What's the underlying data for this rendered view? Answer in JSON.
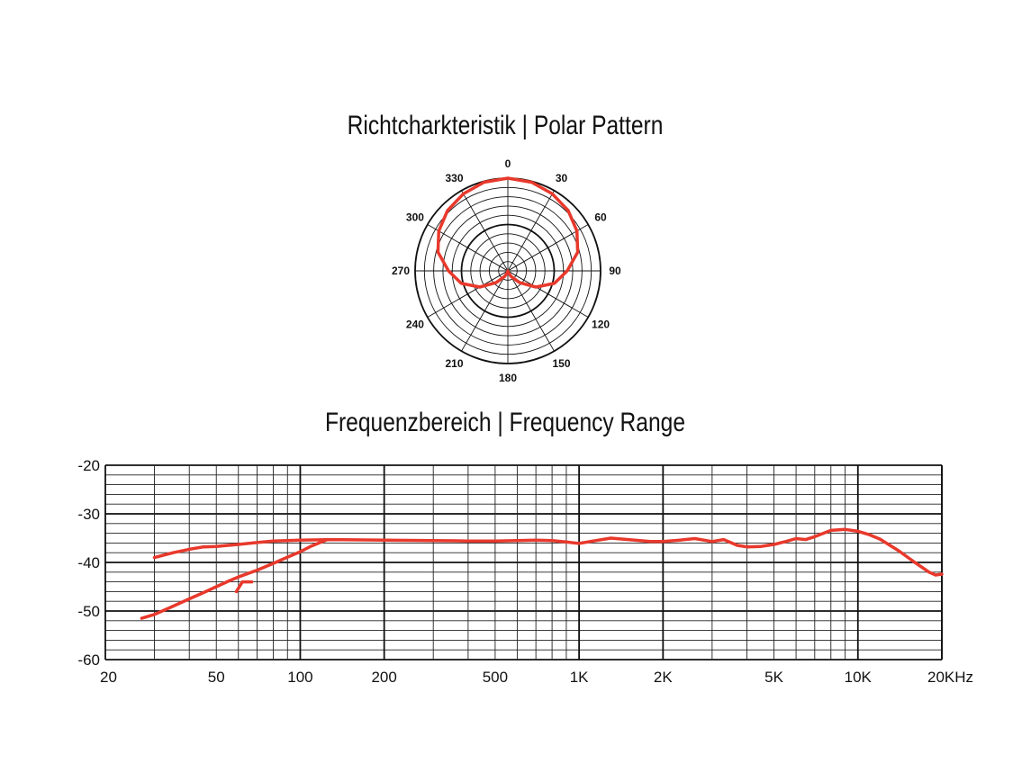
{
  "chart_data": [
    {
      "type": "polar",
      "title": "Richtcharkteristik | Polar Pattern",
      "angle_labels": [
        "0",
        "30",
        "60",
        "90",
        "120",
        "150",
        "180",
        "210",
        "240",
        "270",
        "300",
        "330"
      ],
      "rings": 10,
      "series": [
        {
          "color": "#e8392c",
          "points": [
            [
              0,
              1.0
            ],
            [
              15,
              0.99
            ],
            [
              30,
              0.96
            ],
            [
              45,
              0.92
            ],
            [
              60,
              0.86
            ],
            [
              75,
              0.78
            ],
            [
              90,
              0.64
            ],
            [
              105,
              0.52
            ],
            [
              120,
              0.35
            ],
            [
              135,
              0.18
            ],
            [
              150,
              0.07
            ],
            [
              165,
              0.02
            ],
            [
              180,
              0.0
            ],
            [
              195,
              0.02
            ],
            [
              210,
              0.07
            ],
            [
              225,
              0.18
            ],
            [
              240,
              0.35
            ],
            [
              255,
              0.52
            ],
            [
              270,
              0.64
            ],
            [
              285,
              0.78
            ],
            [
              300,
              0.86
            ],
            [
              315,
              0.92
            ],
            [
              330,
              0.96
            ],
            [
              345,
              0.99
            ],
            [
              360,
              1.0
            ]
          ]
        }
      ]
    },
    {
      "type": "line",
      "title": "Frequenzbereich | Frequency Range",
      "x_scale": "log",
      "xlim": [
        20,
        20000
      ],
      "ylim": [
        -60,
        -20
      ],
      "x_ticks": [
        {
          "value": 20,
          "label": "20"
        },
        {
          "value": 50,
          "label": "50"
        },
        {
          "value": 100,
          "label": "100"
        },
        {
          "value": 200,
          "label": "200"
        },
        {
          "value": 500,
          "label": "500"
        },
        {
          "value": 1000,
          "label": "1K"
        },
        {
          "value": 2000,
          "label": "2K"
        },
        {
          "value": 5000,
          "label": "5K"
        },
        {
          "value": 10000,
          "label": "10K"
        },
        {
          "value": 20000,
          "label": "20KHz"
        }
      ],
      "y_ticks": [
        {
          "value": -20,
          "label": "-20"
        },
        {
          "value": -30,
          "label": "-30"
        },
        {
          "value": -40,
          "label": "-40"
        },
        {
          "value": -50,
          "label": "-50"
        },
        {
          "value": -60,
          "label": "-60"
        }
      ],
      "series": [
        {
          "color": "#e8392c",
          "points": [
            [
              30,
              -39.0
            ],
            [
              35,
              -38.0
            ],
            [
              40,
              -37.3
            ],
            [
              45,
              -36.8
            ],
            [
              50,
              -36.7
            ],
            [
              60,
              -36.3
            ],
            [
              70,
              -35.9
            ],
            [
              80,
              -35.6
            ],
            [
              100,
              -35.4
            ],
            [
              130,
              -35.3
            ],
            [
              200,
              -35.4
            ],
            [
              300,
              -35.5
            ],
            [
              400,
              -35.6
            ],
            [
              500,
              -35.6
            ],
            [
              600,
              -35.5
            ],
            [
              700,
              -35.4
            ],
            [
              800,
              -35.5
            ],
            [
              900,
              -35.8
            ],
            [
              1000,
              -36.1
            ],
            [
              1150,
              -35.5
            ],
            [
              1300,
              -35.0
            ],
            [
              1500,
              -35.3
            ],
            [
              1800,
              -35.7
            ],
            [
              2000,
              -35.7
            ],
            [
              2300,
              -35.4
            ],
            [
              2600,
              -35.1
            ],
            [
              3000,
              -35.7
            ],
            [
              3300,
              -35.3
            ],
            [
              3700,
              -36.5
            ],
            [
              4000,
              -36.8
            ],
            [
              4500,
              -36.7
            ],
            [
              5000,
              -36.3
            ],
            [
              5500,
              -35.7
            ],
            [
              6000,
              -35.1
            ],
            [
              6500,
              -35.3
            ],
            [
              7000,
              -34.7
            ],
            [
              8000,
              -33.4
            ],
            [
              9000,
              -33.2
            ],
            [
              10000,
              -33.6
            ],
            [
              11000,
              -34.3
            ],
            [
              12000,
              -35.2
            ],
            [
              14000,
              -37.6
            ],
            [
              16000,
              -40.0
            ],
            [
              18000,
              -42.0
            ],
            [
              19000,
              -42.6
            ],
            [
              20000,
              -42.4
            ]
          ]
        },
        {
          "color": "#e8392c",
          "points": [
            [
              27,
              -51.5
            ],
            [
              30,
              -50.7
            ],
            [
              35,
              -49.0
            ],
            [
              40,
              -47.5
            ],
            [
              45,
              -46.2
            ],
            [
              50,
              -45.0
            ],
            [
              55,
              -43.9
            ],
            [
              60,
              -43.0
            ],
            [
              70,
              -41.6
            ],
            [
              80,
              -40.2
            ],
            [
              90,
              -38.9
            ],
            [
              100,
              -37.8
            ],
            [
              110,
              -36.6
            ],
            [
              125,
              -35.3
            ]
          ]
        }
      ],
      "annotations": [
        {
          "type": "marker",
          "points": [
            [
              59,
              -46.0
            ],
            [
              62,
              -44.0
            ],
            [
              67,
              -44.0
            ]
          ],
          "color": "#e8392c"
        }
      ]
    }
  ]
}
